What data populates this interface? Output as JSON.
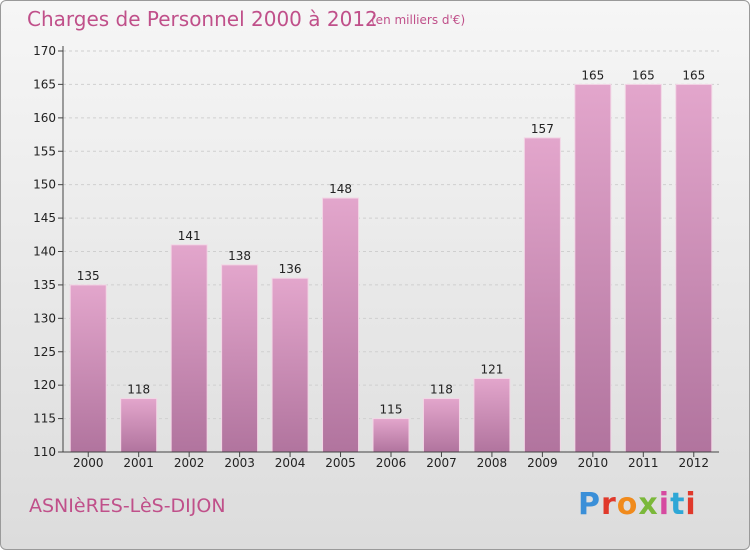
{
  "header": {
    "title": "Charges de Personnel 2000 à 2012",
    "subtitle": "(en milliers d'€)"
  },
  "footer": {
    "commune": "ASNIèRES-LèS-DIJON",
    "logo": "Proxiti",
    "logo_colors": [
      "#3a8fd8",
      "#e0392b",
      "#f08a1c",
      "#7bb83a",
      "#d64aa0",
      "#2ea7d6",
      "#e0392b"
    ]
  },
  "colors": {
    "bar_light": "#e3a6cc",
    "bar_dark": "#b1749e",
    "accent": "#c0508a"
  },
  "chart_data": {
    "type": "bar",
    "categories": [
      "2000",
      "2001",
      "2002",
      "2003",
      "2004",
      "2005",
      "2006",
      "2007",
      "2008",
      "2009",
      "2010",
      "2011",
      "2012"
    ],
    "values": [
      135,
      118,
      141,
      138,
      136,
      148,
      115,
      118,
      121,
      157,
      165,
      165,
      165
    ],
    "data_labels": [
      "135",
      "118",
      "141",
      "138",
      "136",
      "148",
      "115",
      "118",
      "121",
      "157",
      "165",
      "165",
      "165"
    ],
    "title": "Charges de Personnel 2000 à 2012",
    "ylim": [
      110,
      170
    ],
    "yticks": [
      110,
      115,
      120,
      125,
      130,
      135,
      140,
      145,
      150,
      155,
      160,
      165,
      170
    ],
    "ytick_labels": [
      "110",
      "115",
      "120",
      "125",
      "130",
      "135",
      "140",
      "145",
      "150",
      "155",
      "160",
      "165",
      "170"
    ],
    "grid": true
  }
}
